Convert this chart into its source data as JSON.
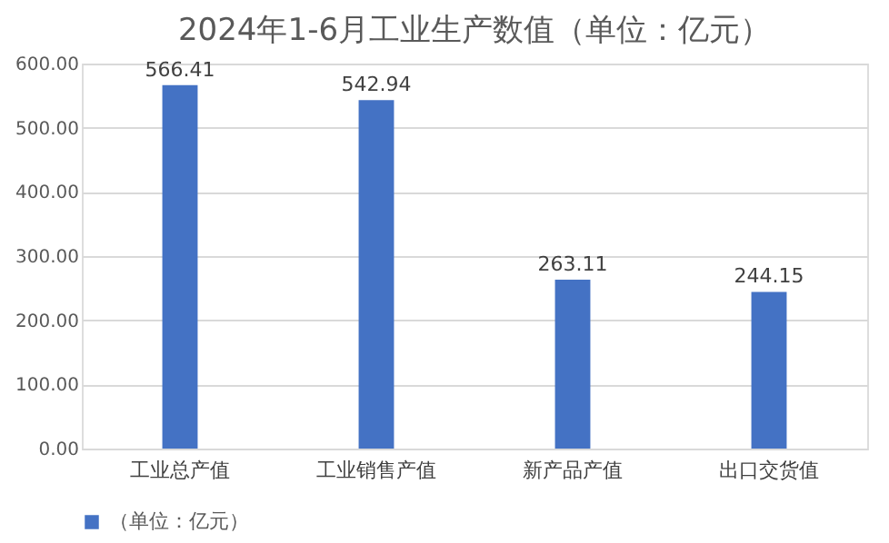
{
  "chart_data": {
    "type": "bar",
    "title": "2024年1-6月工业生产数值（单位：亿元）",
    "categories": [
      "工业总产值",
      "工业销售产值",
      "新产品产值",
      "出口交货值"
    ],
    "series": [
      {
        "name": "（单位：亿元）",
        "color": "#4472c4",
        "values": [
          566.41,
          542.94,
          263.11,
          244.15
        ]
      }
    ],
    "ylim": [
      0,
      600
    ],
    "yticks": [
      {
        "value": 0,
        "label": "0.00"
      },
      {
        "value": 100,
        "label": "100.00"
      },
      {
        "value": 200,
        "label": "200.00"
      },
      {
        "value": 300,
        "label": "300.00"
      },
      {
        "value": 400,
        "label": "400.00"
      },
      {
        "value": 500,
        "label": "500.00"
      },
      {
        "value": 600,
        "label": "600.00"
      }
    ],
    "grid": "y",
    "legend": "bottom",
    "data_labels": true
  }
}
